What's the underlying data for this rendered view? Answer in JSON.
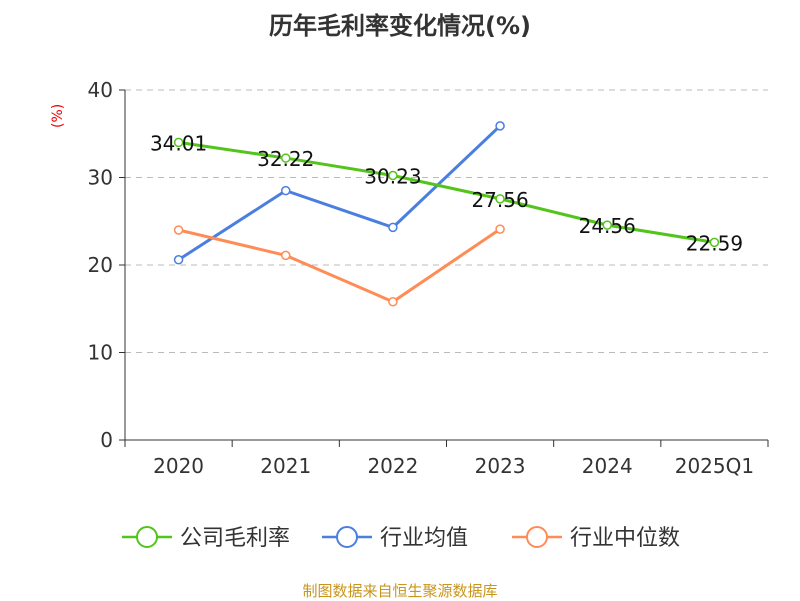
{
  "chart_data": {
    "type": "line",
    "title": "历年毛利率变化情况(%)",
    "ylabel": "(%)",
    "categories": [
      "2020",
      "2021",
      "2022",
      "2023",
      "2024",
      "2025Q1"
    ],
    "ylim": [
      0,
      40
    ],
    "yticks": [
      0,
      10,
      20,
      30,
      40
    ],
    "grid": true,
    "legend_position": "bottom",
    "series": [
      {
        "name": "公司毛利率",
        "color": "#52c41a",
        "values": [
          34.01,
          32.22,
          30.23,
          27.56,
          24.56,
          22.59
        ],
        "labels": [
          "34.01",
          "32.22",
          "30.23",
          "27.56",
          "24.56",
          "22.59"
        ]
      },
      {
        "name": "行业均值",
        "color": "#4a7fe0",
        "values": [
          20.6,
          28.5,
          24.3,
          35.9,
          null,
          null
        ]
      },
      {
        "name": "行业中位数",
        "color": "#ff8c55",
        "values": [
          24.0,
          21.1,
          15.8,
          24.1,
          null,
          null
        ]
      }
    ]
  },
  "source": "制图数据来自恒生聚源数据库"
}
